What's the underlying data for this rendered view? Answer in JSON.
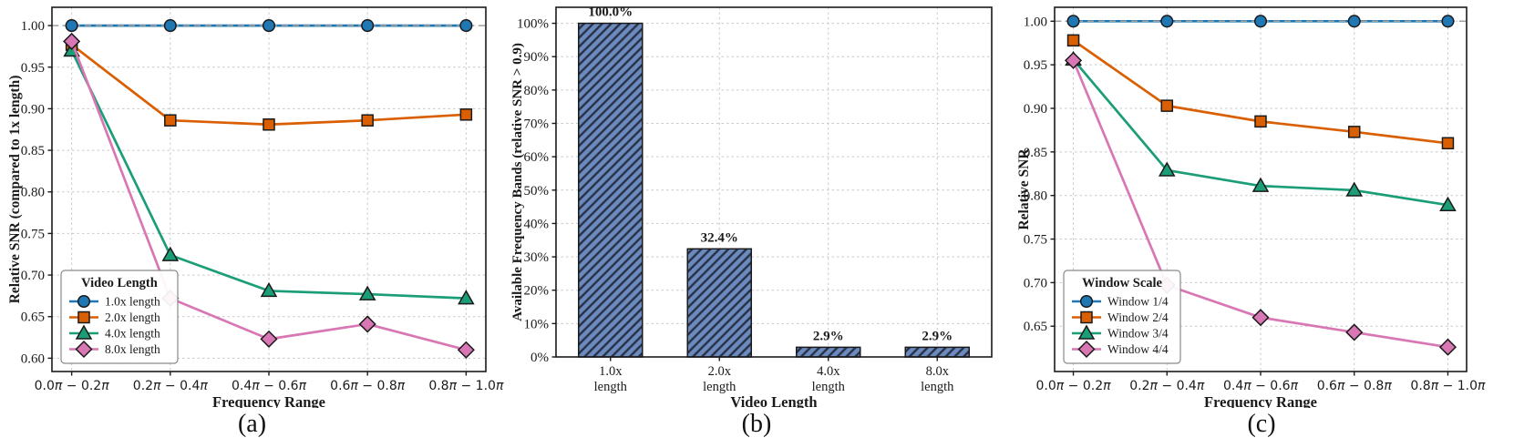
{
  "figure": {
    "background": "#ffffff",
    "spine_color": "#1a1a1a",
    "grid_color": "#c9c9c9",
    "ref_line_color": "#a0a0a0",
    "marker_edge_color": "#1a1a1a"
  },
  "chart_data": [
    {
      "id": "a",
      "type": "line",
      "caption": "(a)",
      "xlabel": "Frequency Range",
      "ylabel": "Relative SNR (compared to 1x length)",
      "x_ticklabels": [
        "0.0π − 0.2π",
        "0.2π − 0.4π",
        "0.4π − 0.6π",
        "0.6π − 0.8π",
        "0.8π − 1.0π"
      ],
      "yticks": [
        0.6,
        0.65,
        0.7,
        0.75,
        0.8,
        0.85,
        0.9,
        0.95,
        1.0
      ],
      "ylim": [
        0.584,
        1.022
      ],
      "ref_line_y": 1.0,
      "grid": true,
      "legend": {
        "title": "Video Length",
        "position": "lower-left"
      },
      "series": [
        {
          "name": "1.0x length",
          "color": "#1f77b4",
          "marker": "circle",
          "values": [
            1.0,
            1.0,
            1.0,
            1.0,
            1.0
          ]
        },
        {
          "name": "2.0x length",
          "color": "#d95f02",
          "marker": "square",
          "values": [
            0.977,
            0.886,
            0.881,
            0.886,
            0.893
          ]
        },
        {
          "name": "4.0x length",
          "color": "#1b9e77",
          "marker": "triangle",
          "values": [
            0.97,
            0.724,
            0.681,
            0.677,
            0.672
          ]
        },
        {
          "name": "8.0x length",
          "color": "#d877b3",
          "marker": "diamond",
          "values": [
            0.981,
            0.672,
            0.623,
            0.641,
            0.61
          ]
        }
      ]
    },
    {
      "id": "b",
      "type": "bar",
      "caption": "(b)",
      "xlabel": "Video Length",
      "ylabel": "Available Frequency Bands (relative SNR > 0.9)",
      "categories": [
        [
          "1.0x",
          "length"
        ],
        [
          "2.0x",
          "length"
        ],
        [
          "4.0x",
          "length"
        ],
        [
          "8.0x",
          "length"
        ]
      ],
      "values": [
        100.0,
        32.4,
        2.9,
        2.9
      ],
      "value_labels": [
        "100.0%",
        "32.4%",
        "2.9%",
        "2.9%"
      ],
      "ytick_labels": [
        "0%",
        "10%",
        "20%",
        "30%",
        "40%",
        "50%",
        "60%",
        "70%",
        "80%",
        "90%",
        "100%"
      ],
      "yticks": [
        0,
        10,
        20,
        30,
        40,
        50,
        60,
        70,
        80,
        90,
        100
      ],
      "ylim": [
        0,
        104.8
      ],
      "grid": true,
      "bar_color": "#6b8abe",
      "hatch_color": "#283046",
      "bar_edge_color": "#1a1a1a"
    },
    {
      "id": "c",
      "type": "line",
      "caption": "(c)",
      "xlabel": "Frequency Range",
      "ylabel": "Relative SNR",
      "x_ticklabels": [
        "0.0π − 0.2π",
        "0.2π − 0.4π",
        "0.4π − 0.6π",
        "0.6π − 0.8π",
        "0.8π − 1.0π"
      ],
      "yticks": [
        0.65,
        0.7,
        0.75,
        0.8,
        0.85,
        0.9,
        0.95,
        1.0
      ],
      "ylim": [
        0.598,
        1.016
      ],
      "ref_line_y": 1.0,
      "grid": true,
      "legend": {
        "title": "Window Scale",
        "position": "lower-left"
      },
      "series": [
        {
          "name": "Window 1/4",
          "color": "#1f77b4",
          "marker": "circle",
          "values": [
            1.0,
            1.0,
            1.0,
            1.0,
            1.0
          ]
        },
        {
          "name": "Window 2/4",
          "color": "#d95f02",
          "marker": "square",
          "values": [
            0.978,
            0.903,
            0.885,
            0.873,
            0.86
          ]
        },
        {
          "name": "Window 3/4",
          "color": "#1b9e77",
          "marker": "triangle",
          "values": [
            0.956,
            0.829,
            0.811,
            0.806,
            0.789
          ]
        },
        {
          "name": "Window 4/4",
          "color": "#d877b3",
          "marker": "diamond",
          "values": [
            0.955,
            0.697,
            0.66,
            0.643,
            0.626
          ]
        }
      ]
    }
  ]
}
